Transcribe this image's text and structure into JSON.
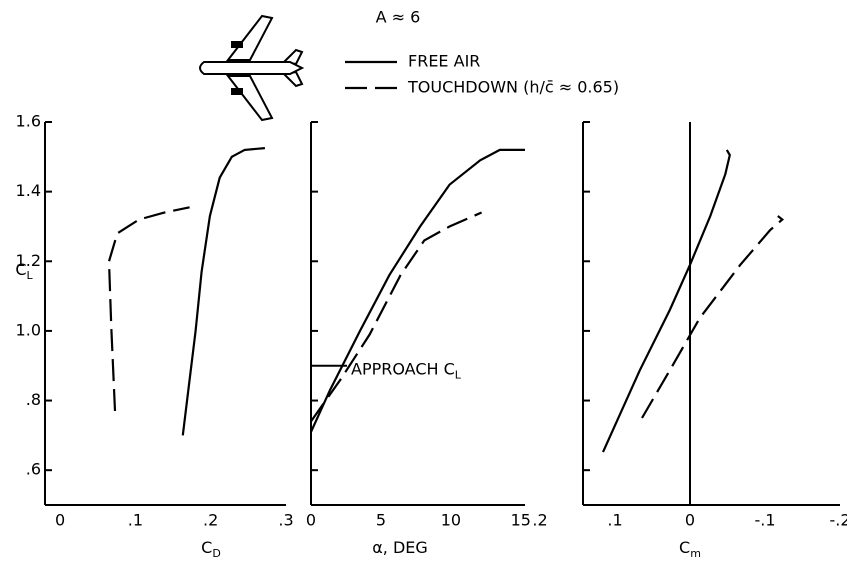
{
  "header": {
    "text": "A ≈ 6"
  },
  "chart_data": [
    {
      "type": "line",
      "xlabel": {
        "text": "C",
        "sub": "D"
      },
      "ylabel": {
        "text": "C",
        "sub": "L"
      },
      "xlim": [
        -0.02,
        0.3
      ],
      "ylim": [
        0.5,
        1.6
      ],
      "xticks": [
        0,
        {
          "value": 0.1,
          "label": ".1"
        },
        {
          "value": 0.2,
          "label": ".2"
        },
        {
          "value": 0.3,
          "label": ".3"
        }
      ],
      "yticks": [
        {
          "value": 0.6,
          "label": ".6"
        },
        {
          "value": 0.8,
          "label": ".8"
        },
        {
          "value": 1.0,
          "label": "1.0"
        },
        1.2,
        1.4,
        1.6
      ],
      "ytick_labels": true,
      "series": [
        {
          "name": "FREE AIR",
          "color": "#000000",
          "dash": false,
          "x": [
            0.163,
            0.172,
            0.18,
            0.188,
            0.199,
            0.212,
            0.228,
            0.245,
            0.272
          ],
          "values": [
            0.7,
            0.86,
            1.0,
            1.17,
            1.33,
            1.44,
            1.5,
            1.52,
            1.525
          ]
        },
        {
          "name": "TOUCHDOWN (h/c̄ ≈ 0.65)",
          "color": "#000000",
          "dash": true,
          "x": [
            0.073,
            0.068,
            0.065,
            0.076,
            0.105,
            0.139,
            0.172
          ],
          "values": [
            0.77,
            1.01,
            1.2,
            1.28,
            1.32,
            1.34,
            1.355
          ]
        }
      ]
    },
    {
      "type": "line",
      "xlabel": {
        "text": "α, DEG"
      },
      "xlim": [
        0,
        15.3
      ],
      "ylim": [
        0.5,
        1.6
      ],
      "xticks": [
        0,
        5,
        10,
        15
      ],
      "yticks": [
        0.6,
        0.8,
        1.0,
        1.2,
        1.4,
        1.6
      ],
      "ytick_labels": false,
      "annotation": {
        "text": "APPROACH C",
        "sub": "L",
        "y": 0.9
      },
      "series": [
        {
          "color": "#000000",
          "dash": false,
          "x": [
            0,
            1.36,
            3.5,
            5.6,
            7.8,
            9.9,
            12.1,
            13.5,
            15.3
          ],
          "values": [
            0.71,
            0.83,
            1.0,
            1.16,
            1.3,
            1.42,
            1.49,
            1.52,
            1.52
          ]
        },
        {
          "color": "#000000",
          "dash": true,
          "x": [
            0,
            2.1,
            4.2,
            6.4,
            8.1,
            9.9,
            12.2
          ],
          "values": [
            0.74,
            0.86,
            0.99,
            1.16,
            1.26,
            1.3,
            1.34
          ]
        }
      ]
    },
    {
      "type": "line",
      "xlabel": {
        "text": "C",
        "sub": "m"
      },
      "xlim": [
        0.2,
        -0.2
      ],
      "ylim": [
        0.5,
        1.6
      ],
      "xticks": [
        {
          "value": 0.2,
          "label": ".2"
        },
        {
          "value": 0.1,
          "label": ".1"
        },
        0,
        {
          "value": -0.1,
          "label": "-.1"
        },
        {
          "value": -0.2,
          "label": "-.2"
        }
      ],
      "yticks": [
        0.6,
        0.8,
        1.0,
        1.2,
        1.4,
        1.6
      ],
      "ytick_labels": false,
      "zero_line": true,
      "series": [
        {
          "color": "#000000",
          "dash": false,
          "x": [
            0.116,
            0.067,
            0.027,
            0,
            -0.027,
            -0.047,
            -0.053,
            -0.049
          ],
          "values": [
            0.652,
            0.887,
            1.06,
            1.19,
            1.33,
            1.45,
            1.505,
            1.52
          ]
        },
        {
          "color": "#000000",
          "dash": true,
          "x": [
            0.064,
            0.027,
            -0.013,
            -0.067,
            -0.107,
            -0.123,
            -0.117
          ],
          "values": [
            0.75,
            0.887,
            1.037,
            1.19,
            1.29,
            1.32,
            1.33
          ]
        }
      ]
    }
  ]
}
